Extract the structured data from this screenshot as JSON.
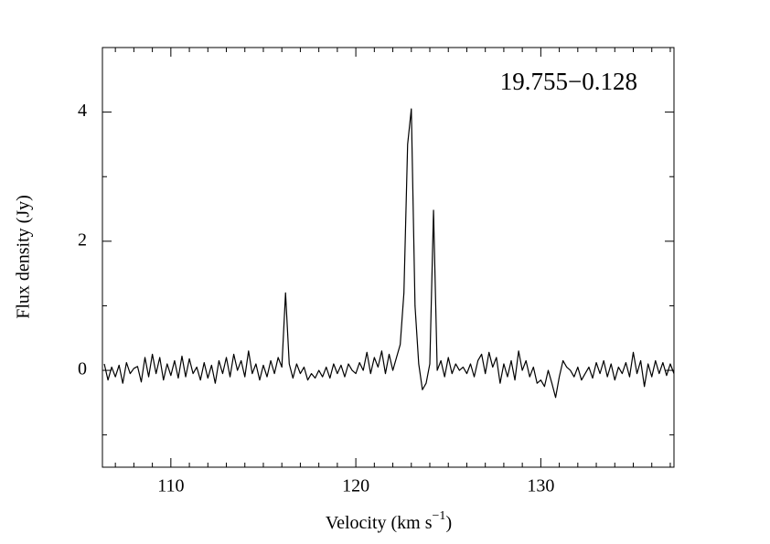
{
  "chart_data": {
    "type": "line",
    "annotation": "19.755−0.128",
    "xlabel": {
      "text": "Velocity (km s",
      "superscript": "−1",
      "close": ")"
    },
    "ylabel": "Flux density (Jy)",
    "xlim": [
      106.3,
      137.2
    ],
    "ylim": [
      -1.5,
      5
    ],
    "xticks": [
      110,
      120,
      130
    ],
    "yticks": [
      0,
      2,
      4
    ],
    "xminorticks": [
      107,
      108,
      109,
      111,
      112,
      113,
      114,
      115,
      116,
      117,
      118,
      119,
      121,
      122,
      123,
      124,
      125,
      126,
      127,
      128,
      129,
      131,
      132,
      133,
      134,
      135,
      136,
      137
    ],
    "yminorticks": [
      -1,
      1,
      3
    ],
    "color": "#000000",
    "x": [
      106.4,
      106.6,
      106.8,
      107.0,
      107.2,
      107.4,
      107.6,
      107.8,
      108.0,
      108.2,
      108.4,
      108.6,
      108.8,
      109.0,
      109.2,
      109.4,
      109.6,
      109.8,
      110.0,
      110.2,
      110.4,
      110.6,
      110.8,
      111.0,
      111.2,
      111.4,
      111.6,
      111.8,
      112.0,
      112.2,
      112.4,
      112.6,
      112.8,
      113.0,
      113.2,
      113.4,
      113.6,
      113.8,
      114.0,
      114.2,
      114.4,
      114.6,
      114.8,
      115.0,
      115.2,
      115.4,
      115.6,
      115.8,
      116.0,
      116.2,
      116.4,
      116.6,
      116.8,
      117.0,
      117.2,
      117.4,
      117.6,
      117.8,
      118.0,
      118.2,
      118.4,
      118.6,
      118.8,
      119.0,
      119.2,
      119.4,
      119.6,
      119.8,
      120.0,
      120.2,
      120.4,
      120.6,
      120.8,
      121.0,
      121.2,
      121.4,
      121.6,
      121.8,
      122.0,
      122.2,
      122.4,
      122.6,
      122.8,
      123.0,
      123.2,
      123.4,
      123.6,
      123.8,
      124.0,
      124.2,
      124.4,
      124.6,
      124.8,
      125.0,
      125.2,
      125.4,
      125.6,
      125.8,
      126.0,
      126.2,
      126.4,
      126.6,
      126.8,
      127.0,
      127.2,
      127.4,
      127.6,
      127.8,
      128.0,
      128.2,
      128.4,
      128.6,
      128.8,
      129.0,
      129.2,
      129.4,
      129.6,
      129.8,
      130.0,
      130.2,
      130.4,
      130.6,
      130.8,
      131.0,
      131.2,
      131.4,
      131.6,
      131.8,
      132.0,
      132.2,
      132.4,
      132.6,
      132.8,
      133.0,
      133.2,
      133.4,
      133.6,
      133.8,
      134.0,
      134.2,
      134.4,
      134.6,
      134.8,
      135.0,
      135.2,
      135.4,
      135.6,
      135.8,
      136.0,
      136.2,
      136.4,
      136.6,
      136.8,
      137.0,
      137.2
    ],
    "values": [
      0.1,
      -0.15,
      0.05,
      -0.1,
      0.08,
      -0.2,
      0.12,
      -0.05,
      0.03,
      0.06,
      -0.18,
      0.2,
      -0.1,
      0.25,
      -0.05,
      0.2,
      -0.15,
      0.1,
      -0.08,
      0.15,
      -0.12,
      0.22,
      -0.1,
      0.18,
      -0.05,
      0.05,
      -0.15,
      0.12,
      -0.12,
      0.08,
      -0.2,
      0.15,
      -0.05,
      0.2,
      -0.1,
      0.25,
      0.0,
      0.15,
      -0.1,
      0.3,
      -0.05,
      0.1,
      -0.15,
      0.08,
      -0.1,
      0.15,
      -0.05,
      0.2,
      0.05,
      1.2,
      0.1,
      -0.12,
      0.1,
      -0.05,
      0.05,
      -0.15,
      -0.05,
      -0.12,
      0.0,
      -0.1,
      0.05,
      -0.12,
      0.1,
      -0.05,
      0.08,
      -0.1,
      0.1,
      0.0,
      -0.05,
      0.12,
      0.0,
      0.28,
      -0.05,
      0.2,
      0.05,
      0.3,
      -0.05,
      0.25,
      0.0,
      0.2,
      0.4,
      1.2,
      3.5,
      4.05,
      1.0,
      0.1,
      -0.3,
      -0.2,
      0.1,
      2.48,
      0.0,
      0.15,
      -0.1,
      0.2,
      -0.05,
      0.1,
      0.0,
      0.05,
      -0.05,
      0.1,
      -0.1,
      0.15,
      0.25,
      -0.05,
      0.28,
      0.05,
      0.2,
      -0.2,
      0.1,
      -0.1,
      0.15,
      -0.15,
      0.3,
      0.0,
      0.15,
      -0.1,
      0.05,
      -0.2,
      -0.15,
      -0.25,
      0.0,
      -0.2,
      -0.42,
      -0.1,
      0.15,
      0.05,
      0.0,
      -0.1,
      0.05,
      -0.15,
      -0.05,
      0.05,
      -0.12,
      0.12,
      -0.05,
      0.15,
      -0.1,
      0.1,
      -0.15,
      0.05,
      -0.05,
      0.12,
      -0.1,
      0.28,
      -0.05,
      0.15,
      -0.25,
      0.1,
      -0.1,
      0.15,
      -0.05,
      0.12,
      -0.08,
      0.1,
      -0.05
    ]
  }
}
